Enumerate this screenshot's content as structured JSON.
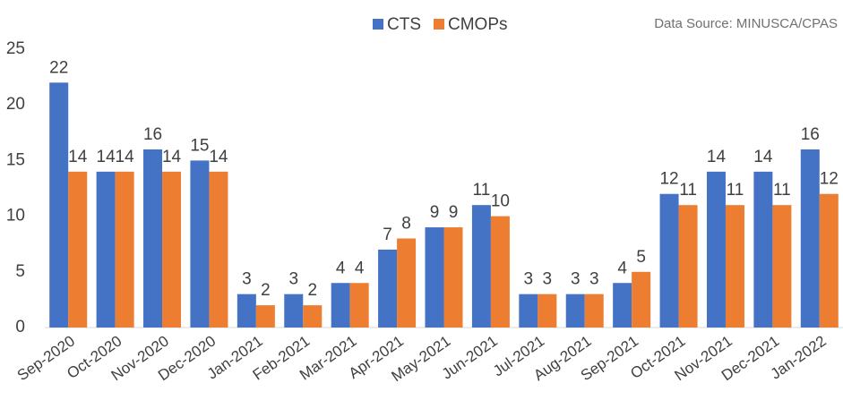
{
  "chart_data": {
    "type": "bar",
    "annotation": "Data Source: MINUSCA/CPAS",
    "categories": [
      "Sep-2020",
      "Oct-2020",
      "Nov-2020",
      "Dec-2020",
      "Jan-2021",
      "Feb-2021",
      "Mar-2021",
      "Apr-2021",
      "May-2021",
      "Jun-2021",
      "Jul-2021",
      "Aug-2021",
      "Sep-2021",
      "Oct-2021",
      "Nov-2021",
      "Dec-2021",
      "Jan-2022"
    ],
    "series": [
      {
        "name": "CTS",
        "color": "#4472c4",
        "values": [
          22,
          14,
          16,
          15,
          3,
          3,
          4,
          7,
          9,
          11,
          3,
          3,
          4,
          12,
          14,
          14,
          16
        ]
      },
      {
        "name": "CMOPs",
        "color": "#ed7d31",
        "values": [
          14,
          14,
          14,
          14,
          2,
          2,
          4,
          8,
          9,
          10,
          3,
          3,
          5,
          11,
          11,
          11,
          12
        ]
      }
    ],
    "ylim": [
      0,
      25
    ],
    "yticks": [
      0,
      5,
      10,
      15,
      20,
      25
    ],
    "grid": false,
    "legend": "top"
  }
}
